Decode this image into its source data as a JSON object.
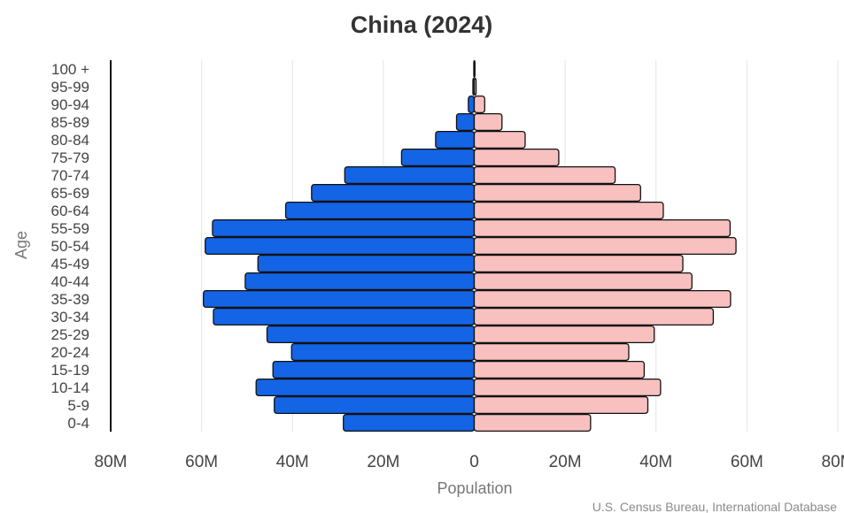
{
  "chart_data": {
    "type": "bar",
    "orientation": "horizontal",
    "layout": "population-pyramid",
    "title": "China (2024)",
    "xlabel": "Population",
    "ylabel": "Age",
    "source": "U.S. Census Bureau, International Database",
    "categories": [
      "0-4",
      "5-9",
      "10-14",
      "15-19",
      "20-24",
      "25-29",
      "30-34",
      "35-39",
      "40-44",
      "45-49",
      "50-54",
      "55-59",
      "60-64",
      "65-69",
      "70-74",
      "75-79",
      "80-84",
      "85-89",
      "90-94",
      "95-99",
      "100 +"
    ],
    "series": [
      {
        "side": "left",
        "color": "#1464e6",
        "values": [
          28.8,
          44.0,
          48.0,
          44.3,
          40.2,
          45.6,
          57.4,
          59.6,
          50.4,
          47.6,
          59.2,
          57.6,
          41.5,
          35.8,
          28.5,
          16.0,
          8.5,
          3.9,
          1.3,
          0.3,
          0.1
        ]
      },
      {
        "side": "right",
        "color": "#f9c0c0",
        "values": [
          25.6,
          38.2,
          41.0,
          37.4,
          34.0,
          39.6,
          52.6,
          56.4,
          47.9,
          45.9,
          57.6,
          56.3,
          41.6,
          36.6,
          31.0,
          18.6,
          11.2,
          6.1,
          2.3,
          0.4,
          0.1
        ]
      }
    ],
    "xlim": [
      -80,
      80
    ],
    "xtick_values": [
      -80,
      -60,
      -40,
      -20,
      0,
      20,
      40,
      60,
      80
    ],
    "xtick_labels": [
      "80M",
      "60M",
      "40M",
      "20M",
      "0",
      "20M",
      "40M",
      "60M",
      "80M"
    ],
    "grid": true,
    "colors": {
      "male": "#1464e6",
      "female": "#f9c0c0",
      "outline": "#111111",
      "grid": "#e4e4e4"
    }
  }
}
